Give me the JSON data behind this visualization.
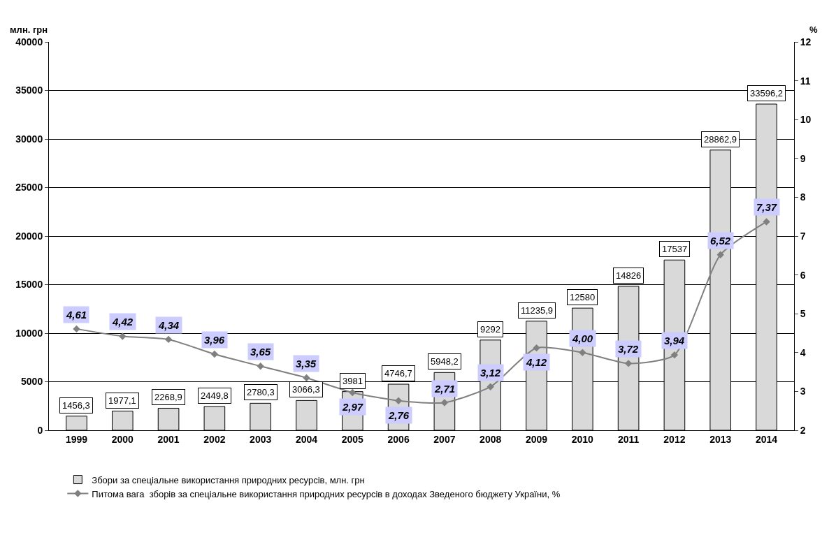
{
  "chart_data": {
    "type": "bar",
    "ylabel": "млн. грн",
    "y2label": "%",
    "categories": [
      "1999",
      "2000",
      "2001",
      "2002",
      "2003",
      "2004",
      "2005",
      "2006",
      "2007",
      "2008",
      "2009",
      "2010",
      "2011",
      "2012",
      "2013",
      "2014"
    ],
    "series": [
      {
        "name": "Збори за спеціальне використання природних ресурсів, млн. грн",
        "color": "#d9d9d9",
        "values": [
          1456.3,
          1977.1,
          2268.9,
          2449.8,
          2780.3,
          3066.3,
          3981,
          4746.7,
          5948.2,
          9292,
          11235.9,
          12580,
          14826,
          17537,
          28862.9,
          33596.2
        ],
        "value_labels": [
          "1456,3",
          "1977,1",
          "2268,9",
          "2449,8",
          "2780,3",
          "3066,3",
          "3981",
          "4746,7",
          "5948,2",
          "9292",
          "11235,9",
          "12580",
          "14826",
          "17537",
          "28862,9",
          "33596,2"
        ]
      },
      {
        "name": "Питома вага  зборів за спеціальне використання природних ресурсів в доходах Зведеного бюджету України, %",
        "type": "line",
        "axis": "y2",
        "color": "#808080",
        "marker": "diamond",
        "values": [
          4.61,
          4.42,
          4.34,
          3.96,
          3.65,
          3.35,
          2.97,
          2.76,
          2.71,
          3.12,
          4.12,
          4.0,
          3.72,
          3.94,
          6.52,
          7.37
        ],
        "value_labels": [
          "4,61",
          "4,42",
          "4,34",
          "3,96",
          "3,65",
          "3,35",
          "2,97",
          "2,76",
          "2,71",
          "3,12",
          "4,12",
          "4,00",
          "3,72",
          "3,94",
          "6,52",
          "7,37"
        ]
      }
    ],
    "ylim": [
      0,
      40000
    ],
    "yticks": [
      0,
      5000,
      10000,
      15000,
      20000,
      25000,
      30000,
      35000,
      40000
    ],
    "y2lim": [
      2,
      12
    ],
    "y2ticks": [
      2,
      3,
      4,
      5,
      6,
      7,
      8,
      9,
      10,
      11,
      12
    ],
    "grid": "y",
    "legend": "bottom"
  }
}
